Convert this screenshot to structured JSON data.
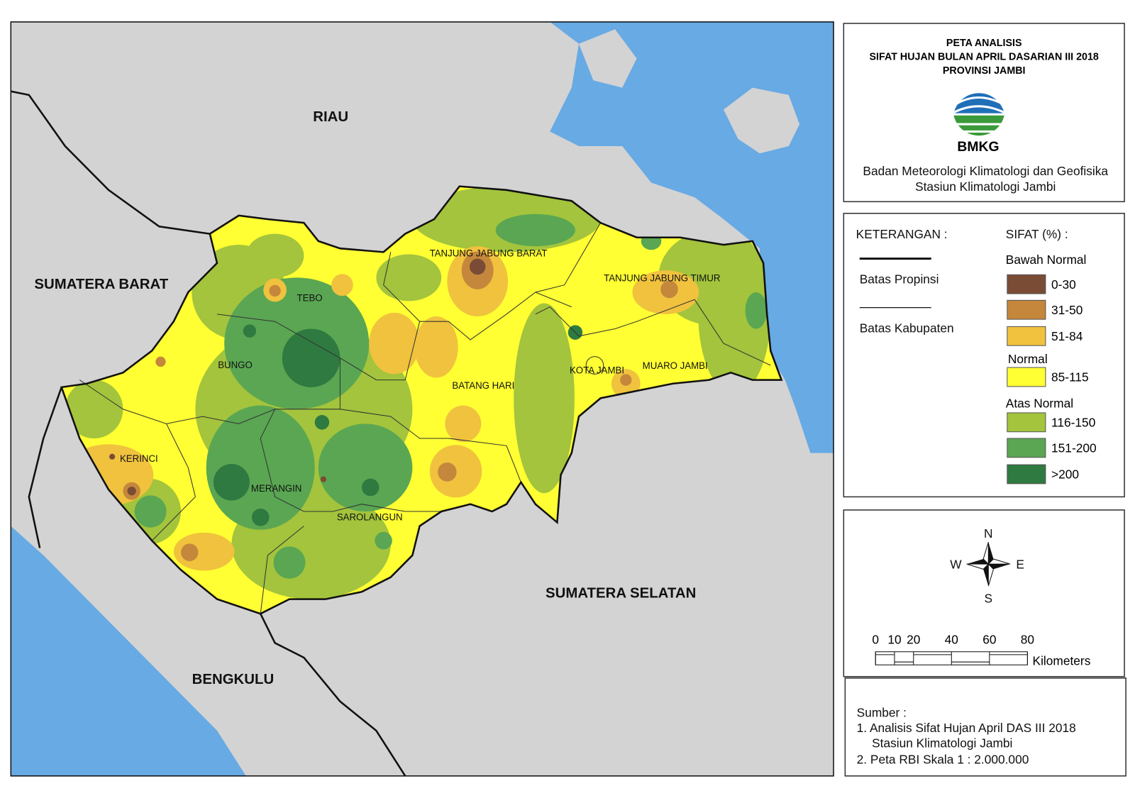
{
  "header": {
    "title": [
      "PETA ANALISIS",
      "SIFAT HUJAN BULAN APRIL DASARIAN III 2018",
      "PROVINSI JAMBI"
    ],
    "logo_text": "BMKG",
    "organization": [
      "Badan Meteorologi Klimatologi dan Geofisika",
      "Stasiun Klimatologi Jambi"
    ]
  },
  "map": {
    "regions": [
      "RIAU",
      "SUMATERA BARAT",
      "SUMATERA SELATAN",
      "BENGKULU"
    ],
    "districts": [
      "TANJUNG JABUNG BARAT",
      "TANJUNG JABUNG TIMUR",
      "TEBO",
      "BUNGO",
      "BATANG HARI",
      "KOTA JAMBI",
      "MUARO JAMBI",
      "KERINCI",
      "MERANGIN",
      "SAROLANGUN"
    ]
  },
  "legend": {
    "title": "KETERANGAN :",
    "lines": [
      "Batas Propinsi",
      "Batas Kabupaten"
    ],
    "classes_title": "SIFAT (%) :",
    "groups": [
      {
        "name": "Bawah Normal",
        "classes": [
          {
            "label": "0-30",
            "color": "#7a4b35"
          },
          {
            "label": "31-50",
            "color": "#c5873c"
          },
          {
            "label": "51-84",
            "color": "#f0c23e"
          }
        ]
      },
      {
        "name": "Normal",
        "classes": [
          {
            "label": "85-115",
            "color": "#ffff33"
          }
        ]
      },
      {
        "name": "Atas Normal",
        "classes": [
          {
            "label": "116-150",
            "color": "#a3c43c"
          },
          {
            "label": "151-200",
            "color": "#5aa653"
          },
          {
            "label": ">200",
            "color": "#2f7a40"
          }
        ]
      }
    ]
  },
  "compass": {
    "n": "N",
    "s": "S",
    "e": "E",
    "w": "W"
  },
  "scale": {
    "ticks": [
      0,
      10,
      20,
      40,
      60,
      80
    ],
    "unit": "Kilometers"
  },
  "source": {
    "title": "Sumber :",
    "items": [
      "1. Analisis Sifat Hujan April DAS III  2018",
      "Stasiun Klimatologi Jambi",
      "2. Peta RBI Skala 1 : 2.000.000"
    ]
  }
}
